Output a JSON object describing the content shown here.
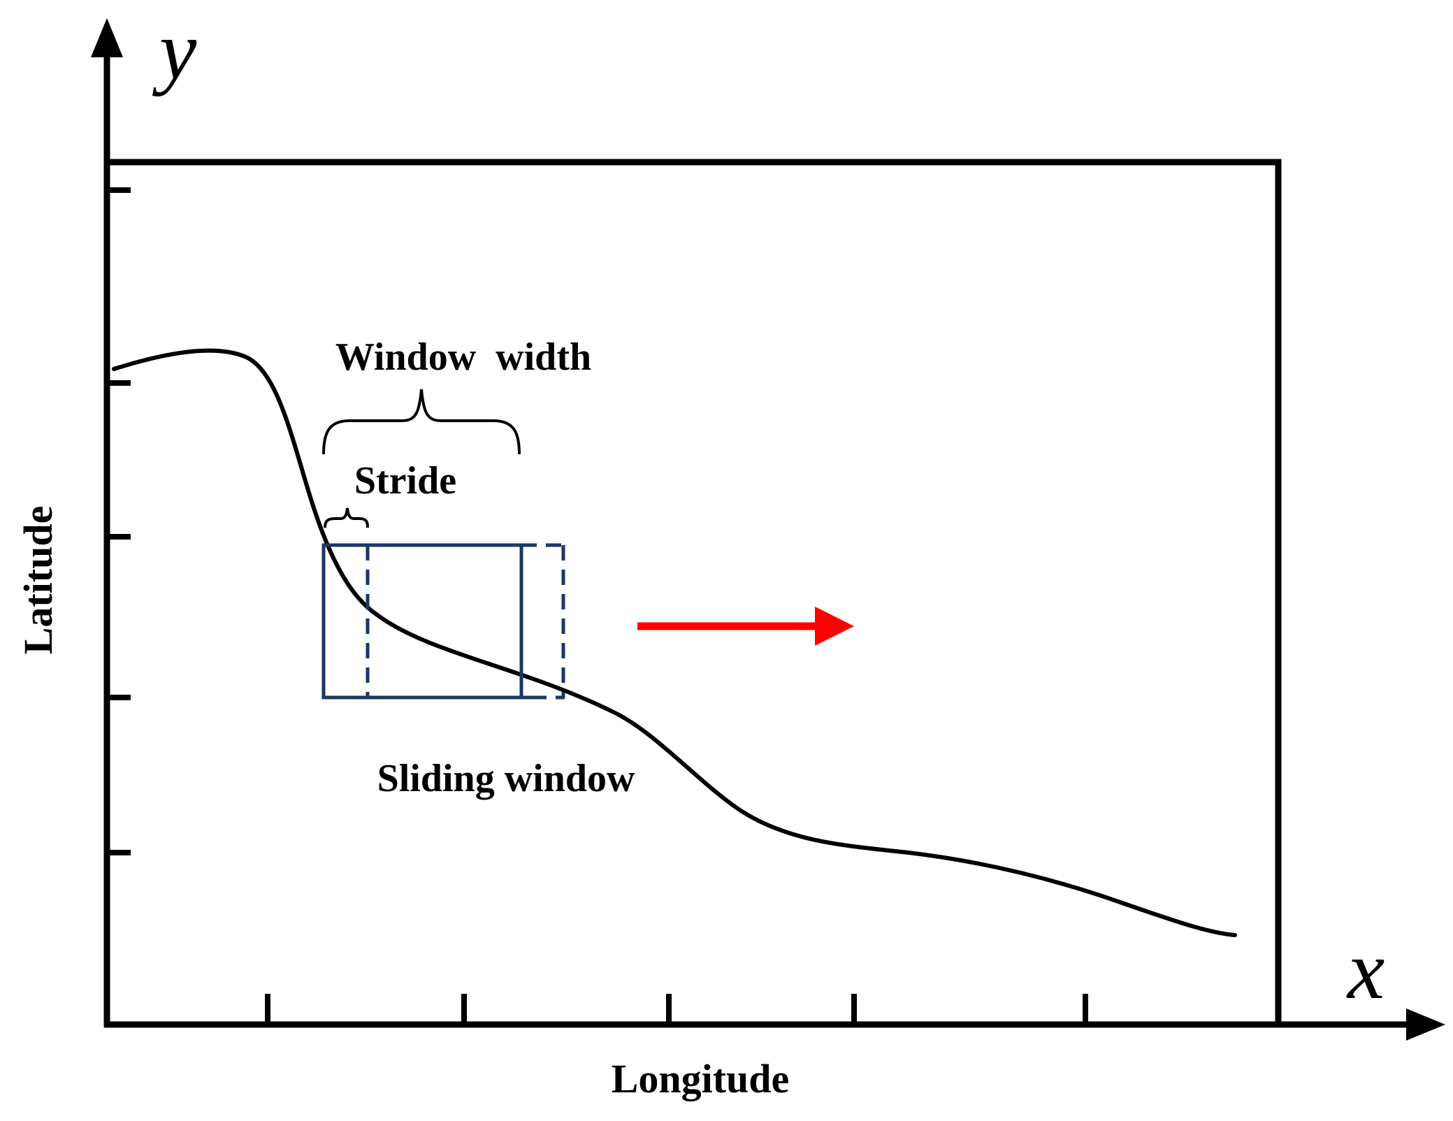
{
  "labels": {
    "y_axis_letter": "y",
    "x_axis_letter": "x",
    "y_axis_title": "Latitude",
    "x_axis_title": "Longitude",
    "window_width": "Window  width",
    "stride": "Stride",
    "sliding_window": "Sliding window"
  },
  "colors": {
    "axis": "#000000",
    "curve": "#000000",
    "window": "#1f3565",
    "direction_arrow": "#ff0000"
  },
  "icons": {
    "direction_arrow": "right-arrow-icon"
  }
}
